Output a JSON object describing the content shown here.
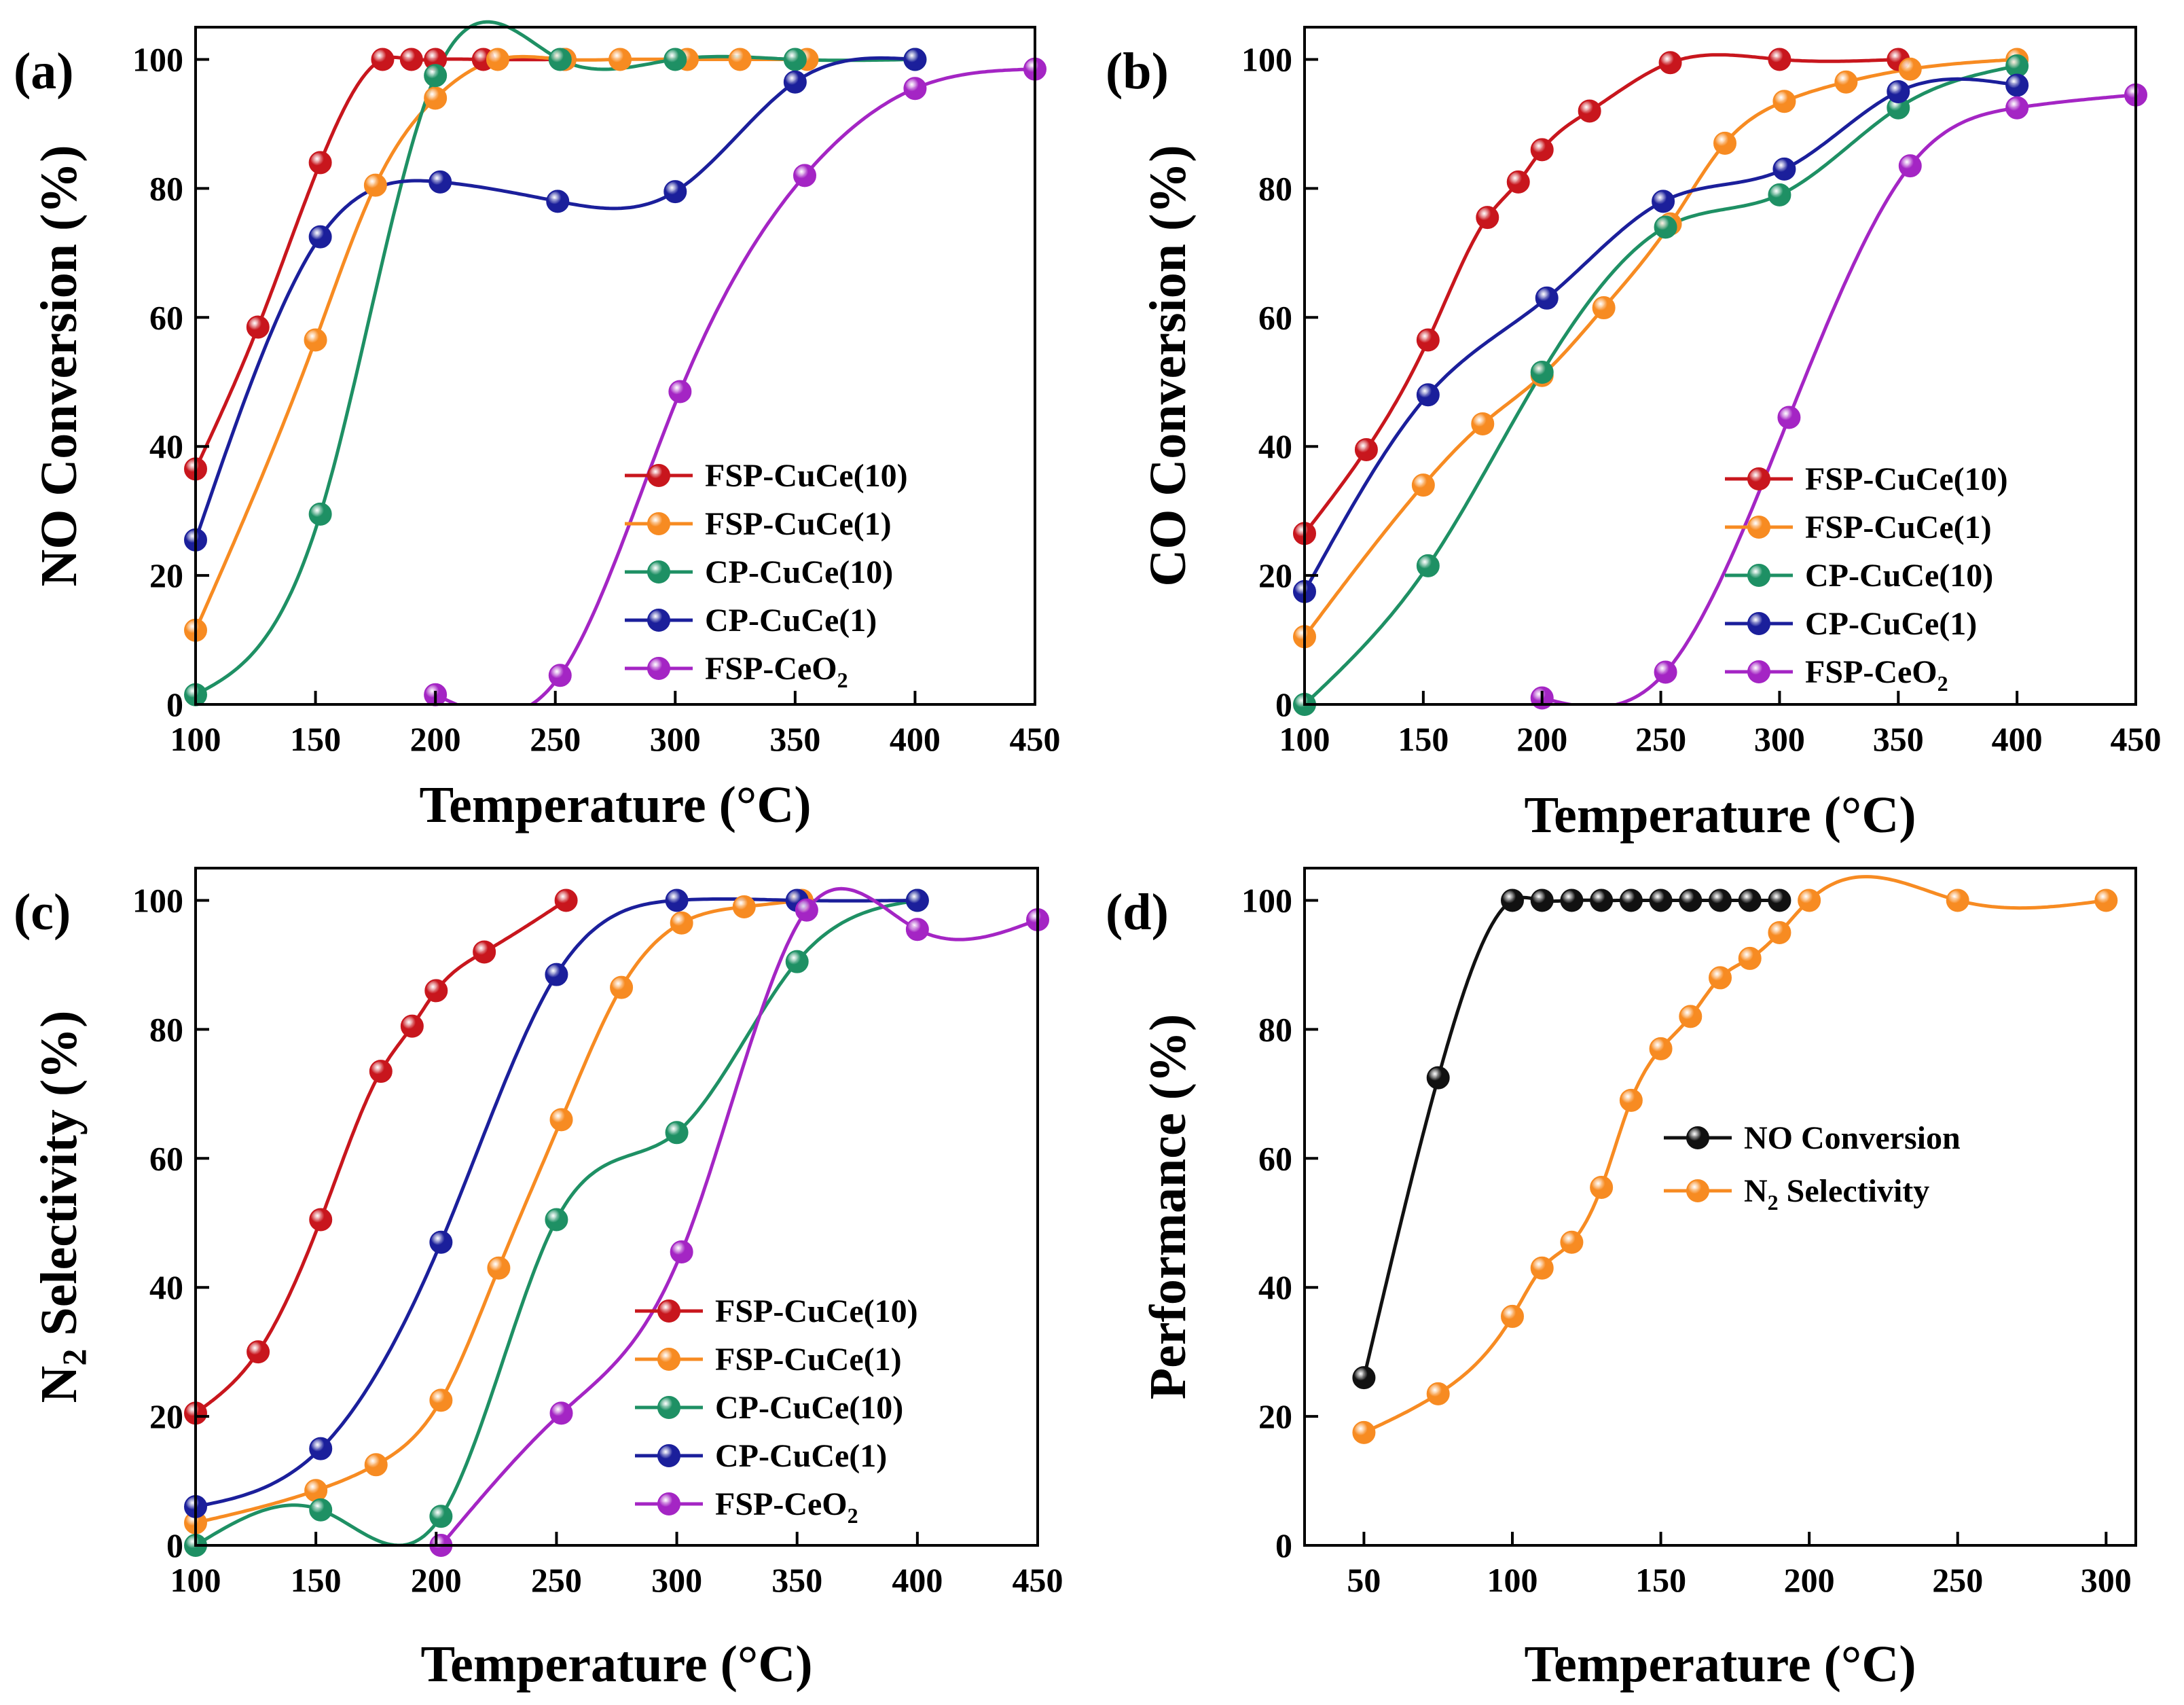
{
  "figure": {
    "panels": [
      "a",
      "b",
      "c",
      "d"
    ]
  },
  "colors": {
    "FSP-CuCe(10)": "#c8161d",
    "FSP-CuCe(1)": "#f78b22",
    "CP-CuCe(10)": "#1e9064",
    "CP-CuCe(1)": "#1b1f9b",
    "FSP-CeO2": "#a425c4",
    "NO Conversion": "#111111",
    "N2 Selectivity": "#f78b22"
  },
  "chart_data": [
    {
      "id": "a",
      "panel_label": "(a)",
      "type": "line",
      "xlabel": "Temperature (°C)",
      "ylabel": "NO Conversion (%)",
      "xlim": [
        100,
        450
      ],
      "ylim": [
        0,
        105
      ],
      "xticks": [
        100,
        150,
        200,
        250,
        300,
        350,
        400,
        450
      ],
      "yticks": [
        0,
        20,
        40,
        60,
        80,
        100
      ],
      "legend_position": "center-right",
      "series": [
        {
          "name": "FSP-CuCe(10)",
          "legend_sub": "",
          "x": [
            100,
            126,
            152,
            178,
            190,
            200,
            220,
            254
          ],
          "y": [
            36.5,
            58.5,
            84,
            100,
            100,
            100,
            100,
            100
          ]
        },
        {
          "name": "FSP-CuCe(1)",
          "legend_sub": "",
          "x": [
            100,
            150,
            175,
            200,
            226,
            254,
            277,
            305,
            327,
            355
          ],
          "y": [
            11.5,
            56.5,
            80.5,
            94,
            100,
            100,
            100,
            100,
            100,
            100
          ]
        },
        {
          "name": "CP-CuCe(10)",
          "legend_sub": "",
          "x": [
            100,
            152,
            200,
            252,
            300,
            350,
            400
          ],
          "y": [
            1.5,
            29.5,
            97.5,
            100,
            100,
            100,
            100
          ]
        },
        {
          "name": "CP-CuCe(1)",
          "legend_sub": "",
          "x": [
            100,
            152,
            202,
            251,
            300,
            350,
            400
          ],
          "y": [
            25.5,
            72.5,
            81,
            78,
            79.5,
            96.5,
            100
          ]
        },
        {
          "name": "FSP-CeO",
          "legend_sub": "2",
          "x": [
            200,
            252,
            302,
            354,
            400,
            450
          ],
          "y": [
            1.5,
            4.5,
            48.5,
            82,
            95.5,
            98.5
          ]
        }
      ]
    },
    {
      "id": "b",
      "panel_label": "(b)",
      "type": "line",
      "xlabel": "Temperature (°C)",
      "ylabel": "CO Conversion (%)",
      "xlim": [
        100,
        450
      ],
      "ylim": [
        0,
        105
      ],
      "xticks": [
        100,
        150,
        200,
        250,
        300,
        350,
        400,
        450
      ],
      "yticks": [
        0,
        20,
        40,
        60,
        80,
        100
      ],
      "legend_position": "center-right",
      "series": [
        {
          "name": "FSP-CuCe(10)",
          "legend_sub": "",
          "x": [
            100,
            126,
            152,
            177,
            190,
            200,
            220,
            254,
            300,
            350
          ],
          "y": [
            26.5,
            39.5,
            56.5,
            75.5,
            81,
            86,
            92,
            99.5,
            100,
            100
          ]
        },
        {
          "name": "FSP-CuCe(1)",
          "legend_sub": "",
          "x": [
            100,
            150,
            175,
            200,
            226,
            254,
            277,
            302,
            328,
            355,
            400
          ],
          "y": [
            10.5,
            34,
            43.5,
            51,
            61.5,
            74.5,
            87,
            93.5,
            96.5,
            98.5,
            100
          ]
        },
        {
          "name": "CP-CuCe(10)",
          "legend_sub": "",
          "x": [
            100,
            152,
            200,
            252,
            300,
            350,
            400
          ],
          "y": [
            0,
            21.5,
            51.5,
            74,
            79,
            92.5,
            99
          ]
        },
        {
          "name": "CP-CuCe(1)",
          "legend_sub": "",
          "x": [
            100,
            152,
            202,
            251,
            302,
            350,
            400
          ],
          "y": [
            17.5,
            48,
            63,
            78,
            83,
            95,
            96
          ]
        },
        {
          "name": "FSP-CeO",
          "legend_sub": "2",
          "x": [
            200,
            252,
            304,
            355,
            400,
            450
          ],
          "y": [
            1,
            5,
            44.5,
            83.5,
            92.5,
            94.5
          ]
        }
      ]
    },
    {
      "id": "c",
      "panel_label": "(c)",
      "type": "line",
      "xlabel": "Temperature (°C)",
      "ylabel_pre": "N",
      "ylabel_sub": "2",
      "ylabel_post": " Selectivity (%)",
      "xlim": [
        100,
        450
      ],
      "ylim": [
        0,
        105
      ],
      "xticks": [
        100,
        150,
        200,
        250,
        300,
        350,
        400,
        450
      ],
      "yticks": [
        0,
        20,
        40,
        60,
        80,
        100
      ],
      "legend_position": "lower-right",
      "series": [
        {
          "name": "FSP-CuCe(10)",
          "legend_sub": "",
          "x": [
            100,
            126,
            152,
            177,
            190,
            200,
            220,
            254
          ],
          "y": [
            20.5,
            30,
            50.5,
            73.5,
            80.5,
            86,
            92,
            100
          ]
        },
        {
          "name": "FSP-CuCe(1)",
          "legend_sub": "",
          "x": [
            100,
            150,
            175,
            202,
            226,
            252,
            277,
            302,
            328,
            352
          ],
          "y": [
            3.5,
            8.5,
            12.5,
            22.5,
            43,
            66,
            86.5,
            96.5,
            99,
            100
          ]
        },
        {
          "name": "CP-CuCe(10)",
          "legend_sub": "",
          "x": [
            100,
            152,
            202,
            250,
            300,
            350,
            400
          ],
          "y": [
            0,
            5.5,
            4.5,
            50.5,
            64,
            90.5,
            100
          ]
        },
        {
          "name": "CP-CuCe(1)",
          "legend_sub": "",
          "x": [
            100,
            152,
            202,
            250,
            300,
            350,
            400
          ],
          "y": [
            6,
            15,
            47,
            88.5,
            100,
            100,
            100
          ]
        },
        {
          "name": "FSP-CeO",
          "legend_sub": "2",
          "x": [
            202,
            252,
            302,
            354,
            400,
            450
          ],
          "y": [
            0,
            20.5,
            45.5,
            98.5,
            95.5,
            97
          ]
        }
      ]
    },
    {
      "id": "d",
      "panel_label": "(d)",
      "type": "line",
      "xlabel": "Temperature (°C)",
      "ylabel": "Performance (%)",
      "xlim": [
        30,
        310
      ],
      "ylim": [
        0,
        105
      ],
      "xticks": [
        50,
        100,
        150,
        200,
        250,
        300
      ],
      "yticks": [
        0,
        20,
        40,
        60,
        80,
        100
      ],
      "legend_position": "center-right",
      "series": [
        {
          "name": "NO Conversion",
          "legend_sub": "",
          "x": [
            50,
            75,
            100,
            110,
            120,
            130,
            140,
            150,
            160,
            170,
            180,
            190
          ],
          "y": [
            26,
            72.5,
            100,
            100,
            100,
            100,
            100,
            100,
            100,
            100,
            100,
            100
          ]
        },
        {
          "name": "",
          "legend_sub": "",
          "legend_pre": "N",
          "legend_sub2": "2",
          "legend_post": " Selectivity",
          "x": [
            50,
            75,
            100,
            110,
            120,
            130,
            140,
            150,
            160,
            170,
            180,
            190,
            200,
            250,
            300
          ],
          "y": [
            17.5,
            23.5,
            35.5,
            43,
            47,
            55.5,
            69,
            77,
            82,
            88,
            91,
            95,
            100,
            100,
            100
          ]
        }
      ]
    }
  ]
}
